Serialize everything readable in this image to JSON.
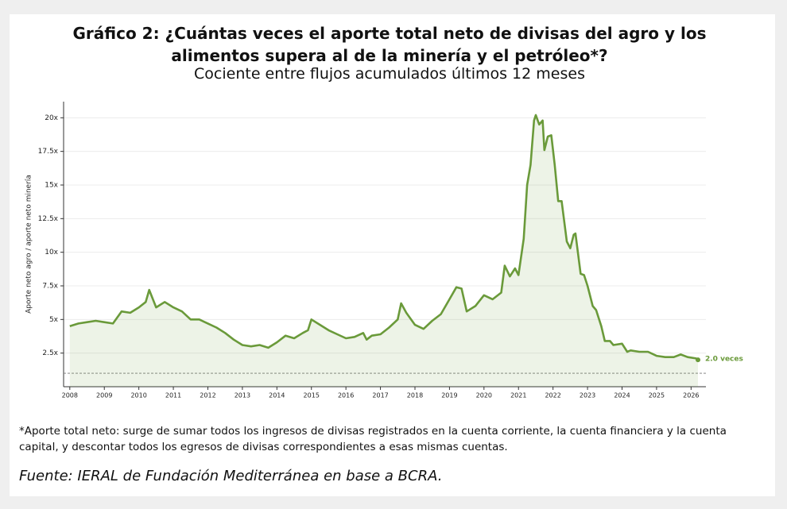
{
  "chart_data": {
    "type": "line",
    "title": "Gráfico 2: ¿Cuántas veces el aporte total neto de divisas del agro y los alimentos supera al de la minería y el petróleo*?",
    "subtitle": "Cociente entre flujos acumulados últimos 12 meses",
    "y_label": "Aporte neto agro / aporte neto minería",
    "note": "*Aporte total neto: surge de sumar todos los ingresos de divisas registrados en la cuenta corriente, la cuenta financiera y la cuenta capital, y descontar todos los egresos de divisas correspondientes a esas mismas cuentas.",
    "source": "Fuente: IERAL de Fundación Mediterránea en base a BCRA.",
    "annotation": "2.0 veces",
    "reference_line": 1,
    "grid": true,
    "series": [
      {
        "name": "Cociente",
        "color": "#6a9a3a",
        "x": [
          2008.0,
          2008.25,
          2008.5,
          2008.75,
          2009.0,
          2009.25,
          2009.5,
          2009.75,
          2010.0,
          2010.2,
          2010.3,
          2010.5,
          2010.75,
          2011.0,
          2011.25,
          2011.5,
          2011.75,
          2012.0,
          2012.25,
          2012.5,
          2012.75,
          2013.0,
          2013.25,
          2013.5,
          2013.75,
          2014.0,
          2014.25,
          2014.5,
          2014.75,
          2014.9,
          2015.0,
          2015.25,
          2015.5,
          2015.75,
          2016.0,
          2016.25,
          2016.5,
          2016.6,
          2016.75,
          2017.0,
          2017.25,
          2017.5,
          2017.6,
          2017.75,
          2018.0,
          2018.25,
          2018.5,
          2018.75,
          2019.0,
          2019.2,
          2019.35,
          2019.5,
          2019.75,
          2020.0,
          2020.25,
          2020.5,
          2020.6,
          2020.75,
          2020.9,
          2021.0,
          2021.15,
          2021.25,
          2021.35,
          2021.45,
          2021.5,
          2021.6,
          2021.7,
          2021.75,
          2021.85,
          2021.95,
          2022.05,
          2022.15,
          2022.25,
          2022.4,
          2022.5,
          2022.6,
          2022.65,
          2022.8,
          2022.9,
          2023.0,
          2023.15,
          2023.25,
          2023.4,
          2023.5,
          2023.65,
          2023.75,
          2024.0,
          2024.15,
          2024.25,
          2024.5,
          2024.75,
          2025.0,
          2025.25,
          2025.5,
          2025.7,
          2025.9,
          2026.15,
          2026.2
        ],
        "values": [
          4.5,
          4.7,
          4.8,
          4.9,
          4.8,
          4.7,
          5.6,
          5.5,
          5.9,
          6.3,
          7.2,
          5.9,
          6.3,
          5.9,
          5.6,
          5.0,
          5.0,
          4.7,
          4.4,
          4.0,
          3.5,
          3.1,
          3.0,
          3.1,
          2.9,
          3.3,
          3.8,
          3.6,
          4.0,
          4.2,
          5.0,
          4.6,
          4.2,
          3.9,
          3.6,
          3.7,
          4.0,
          3.5,
          3.8,
          3.9,
          4.4,
          5.0,
          6.2,
          5.5,
          4.6,
          4.3,
          4.9,
          5.4,
          6.5,
          7.4,
          7.3,
          5.6,
          6.0,
          6.8,
          6.5,
          7.0,
          9.0,
          8.2,
          8.8,
          8.3,
          11.0,
          15.0,
          16.5,
          19.8,
          20.2,
          19.5,
          19.8,
          17.6,
          18.6,
          18.7,
          16.5,
          13.8,
          13.8,
          10.8,
          10.3,
          11.3,
          11.4,
          8.4,
          8.3,
          7.5,
          6.0,
          5.7,
          4.5,
          3.4,
          3.4,
          3.1,
          3.2,
          2.6,
          2.7,
          2.6,
          2.6,
          2.3,
          2.2,
          2.2,
          2.4,
          2.2,
          2.1,
          2.0
        ]
      }
    ],
    "xlim": [
      2007.82,
      2026.43
    ],
    "xticks": [
      2008,
      2009,
      2010,
      2011,
      2012,
      2013,
      2014,
      2015,
      2016,
      2017,
      2018,
      2019,
      2020,
      2021,
      2022,
      2023,
      2024,
      2025,
      2026
    ],
    "ylim": [
      0,
      21.2
    ],
    "yticks": [
      {
        "value": 2.5,
        "label": "2.5x"
      },
      {
        "value": 5,
        "label": "5x"
      },
      {
        "value": 7.5,
        "label": "7.5x"
      },
      {
        "value": 10,
        "label": "10x"
      },
      {
        "value": 12.5,
        "label": "12.5x"
      },
      {
        "value": 15,
        "label": "15x"
      },
      {
        "value": 17.5,
        "label": "17.5x"
      },
      {
        "value": 20,
        "label": "20x"
      }
    ]
  }
}
